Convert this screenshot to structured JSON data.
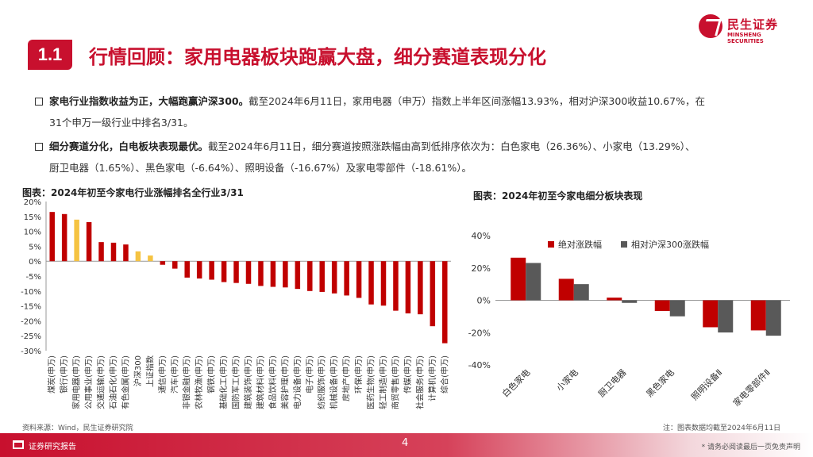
{
  "header": {
    "logo_cn": "民生证券",
    "logo_en": "MINSHENG SECURITIES",
    "section_num": "1.1",
    "section_title": "行情回顾：家用电器板块跑赢大盘，细分赛道表现分化"
  },
  "bullets": [
    {
      "bold": "家电行业指数收益为正，大幅跑赢沪深300。",
      "line1": "截至2024年6月11日，家用电器（申万）指数上半年区间涨幅13.93%，相对沪深300收益10.67%，在",
      "line2": "31个申万一级行业中排名3/31。"
    },
    {
      "bold": "细分赛道分化，白电板块表现最优。",
      "line1": "截至2024年6月11日，细分赛道按照涨跌幅由高到低排序依次为：白色家电（26.36%）、小家电（13.29%）、",
      "line2": "厨卫电器（1.65%）、黑色家电（-6.64%）、照明设备（-16.67%）及家电零部件（-18.61%）。"
    }
  ],
  "figures": {
    "left_title": "图表：2024年初至今家电行业涨幅排名全行业3/31",
    "right_title": "图表：2024年初至今家电细分板块表现",
    "source": "资料来源：Wind，民生证券研究院",
    "note": "注：图表数据均截至2024年6月11日"
  },
  "footer": {
    "label": "证券研究报告",
    "page": "4",
    "disclaimer": "* 请务必阅读最后一页免责声明"
  },
  "colors": {
    "brand_red": "#c8102e",
    "bar_red": "#c00000",
    "bar_yellow": "#f5c342",
    "bar_gray": "#595959"
  },
  "chart_data": [
    {
      "type": "bar",
      "title": "图表：2024年初至今家电行业涨幅排名全行业3/31",
      "categories": [
        "煤炭(申万)",
        "银行(申万)",
        "家用电器(申万)",
        "公用事业(申万)",
        "交通运输(申万)",
        "石油石化(申万)",
        "有色金属(申万)",
        "沪深300",
        "上证指数",
        "通信(申万)",
        "汽车(申万)",
        "非银金融(申万)",
        "农林牧渔(申万)",
        "钢铁(申万)",
        "基础化工(申万)",
        "国防军工(申万)",
        "建筑装饰(申万)",
        "建筑材料(申万)",
        "食品饮料(申万)",
        "美容护理(申万)",
        "电力设备(申万)",
        "电子(申万)",
        "纺织服饰(申万)",
        "机械设备(申万)",
        "房地产(申万)",
        "环保(申万)",
        "医药生物(申万)",
        "轻工制造(申万)",
        "商贸零售(申万)",
        "传媒(申万)",
        "社会服务(申万)",
        "计算机(申万)",
        "综合(申万)"
      ],
      "values": [
        16.5,
        15.8,
        13.93,
        13.1,
        6.4,
        6.2,
        5.6,
        3.3,
        1.9,
        -1.2,
        -2.5,
        -5.5,
        -5.8,
        -6.2,
        -7.0,
        -7.3,
        -7.6,
        -8.3,
        -8.6,
        -8.8,
        -9.3,
        -10.0,
        -10.3,
        -10.8,
        -11.5,
        -12.3,
        -14.5,
        -14.9,
        -16.6,
        -17.5,
        -17.8,
        -21.8,
        -27.5
      ],
      "highlight": {
        "家用电器(申万)": "yellow",
        "沪深300": "yellow",
        "上证指数": "yellow"
      },
      "ylim": [
        -30,
        20
      ],
      "yticks": [
        "20%",
        "15%",
        "10%",
        "5%",
        "0%",
        "-5%",
        "-10%",
        "-15%",
        "-20%",
        "-25%",
        "-30%"
      ],
      "grid": false
    },
    {
      "type": "bar",
      "title": "图表：2024年初至今家电细分板块表现",
      "categories": [
        "白色家电",
        "小家电",
        "厨卫电器",
        "黑色家电",
        "照明设备Ⅱ",
        "家电零部件Ⅱ"
      ],
      "series": [
        {
          "name": "绝对涨跌幅",
          "values": [
            26.36,
            13.29,
            1.65,
            -6.64,
            -16.67,
            -18.61
          ]
        },
        {
          "name": "相对沪深300涨跌幅",
          "values": [
            23.1,
            10.0,
            -1.6,
            -9.9,
            -19.9,
            -21.9
          ]
        }
      ],
      "ylim": [
        -40,
        40
      ],
      "yticks": [
        "40%",
        "20%",
        "0%",
        "-20%",
        "-40%"
      ],
      "legend": "top",
      "grid": false
    }
  ]
}
